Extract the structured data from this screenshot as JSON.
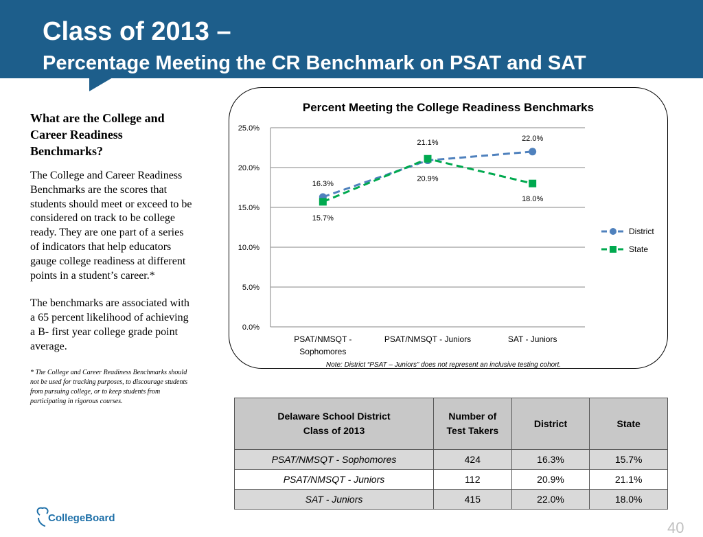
{
  "slide": {
    "title_line1": "Class of 2013 –",
    "title_line2": "Percentage Meeting the CR Benchmark on PSAT and SAT",
    "page_number": "40"
  },
  "sidebar": {
    "heading": "What are the College and Career Readiness Benchmarks?",
    "para1": "The College and Career Readiness Benchmarks are the scores that students should meet or exceed to be considered on track to be college ready. They are one part of a series of indicators that help educators gauge college readiness at different points in a student’s career.*",
    "para2": "The benchmarks are associated with a 65 percent likelihood of achieving a B- first year college grade point average.",
    "footnote": "* The College and Career Readiness Benchmarks should not be used for tracking purposes, to discourage students from pursuing college, or to keep students from participating in rigorous courses."
  },
  "chart_data": {
    "type": "line",
    "title": "Percent Meeting the College Readiness Benchmarks",
    "categories": [
      "PSAT/NMSQT - Sophomores",
      "PSAT/NMSQT - Juniors",
      "SAT - Juniors"
    ],
    "category_lines": [
      [
        "PSAT/NMSQT -",
        "Sophomores"
      ],
      [
        "PSAT/NMSQT - Juniors"
      ],
      [
        "SAT - Juniors"
      ]
    ],
    "series": [
      {
        "name": "District",
        "values": [
          16.3,
          20.9,
          22.0
        ],
        "labels": [
          "16.3%",
          "20.9%",
          "22.0%"
        ],
        "color": "#4f81bd",
        "marker": "circle"
      },
      {
        "name": "State",
        "values": [
          15.7,
          21.1,
          18.0
        ],
        "labels": [
          "15.7%",
          "21.1%",
          "18.0%"
        ],
        "color": "#00a94f",
        "marker": "square"
      }
    ],
    "ylim": [
      0,
      25
    ],
    "yticks": [
      "0.0%",
      "5.0%",
      "10.0%",
      "15.0%",
      "20.0%",
      "25.0%"
    ],
    "grid": true,
    "legend_position": "right",
    "note": "Note:  District “PSAT – Juniors” does not represent an inclusive testing cohort."
  },
  "table": {
    "headers": [
      "Delaware School District\nClass of 2013",
      "Number of\nTest Takers",
      "District",
      "State"
    ],
    "rows": [
      [
        "PSAT/NMSQT - Sophomores",
        "424",
        "16.3%",
        "15.7%"
      ],
      [
        "PSAT/NMSQT - Juniors",
        "112",
        "20.9%",
        "21.1%"
      ],
      [
        "SAT - Juniors",
        "415",
        "22.0%",
        "18.0%"
      ]
    ]
  },
  "logo": {
    "text": "CollegeBoard",
    "icon": "acorn-icon"
  },
  "colors": {
    "banner": "#1d5e8b",
    "district": "#4f81bd",
    "state": "#00a94f"
  }
}
